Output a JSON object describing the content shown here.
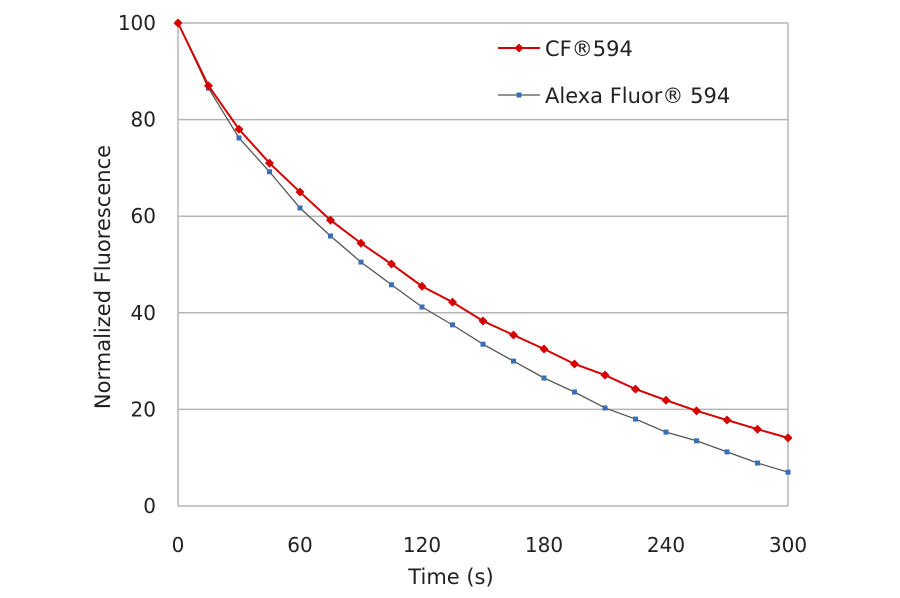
{
  "chart_data": {
    "type": "line",
    "title": "",
    "xlabel": "Time (s)",
    "ylabel": "Normalized Fluorescence",
    "xlim": [
      0,
      300
    ],
    "ylim": [
      0,
      100
    ],
    "xticks": [
      0,
      60,
      120,
      180,
      240,
      300
    ],
    "yticks": [
      0,
      20,
      40,
      60,
      80,
      100
    ],
    "grid": "horizontal",
    "legend_position": "top-right",
    "x": [
      0,
      15,
      30,
      45,
      60,
      75,
      90,
      105,
      120,
      135,
      150,
      165,
      180,
      195,
      210,
      225,
      240,
      255,
      270,
      285,
      300
    ],
    "series": [
      {
        "name": "CF®594",
        "color": "#d40000",
        "marker": "diamond",
        "values": [
          100,
          87.0,
          78.0,
          71.0,
          65.0,
          59.2,
          54.4,
          50.1,
          45.5,
          42.2,
          38.3,
          35.4,
          32.5,
          29.4,
          27.1,
          24.2,
          21.9,
          19.7,
          17.8,
          15.9,
          14.1
        ]
      },
      {
        "name": "Alexa Fluor® 594",
        "color": "#3a6fb5",
        "marker": "square",
        "values": [
          100,
          86.5,
          76.2,
          69.2,
          61.7,
          55.9,
          50.5,
          45.8,
          41.2,
          37.5,
          33.5,
          30.0,
          26.5,
          23.6,
          20.3,
          18.0,
          15.3,
          13.5,
          11.2,
          8.9,
          7.0
        ]
      }
    ]
  }
}
